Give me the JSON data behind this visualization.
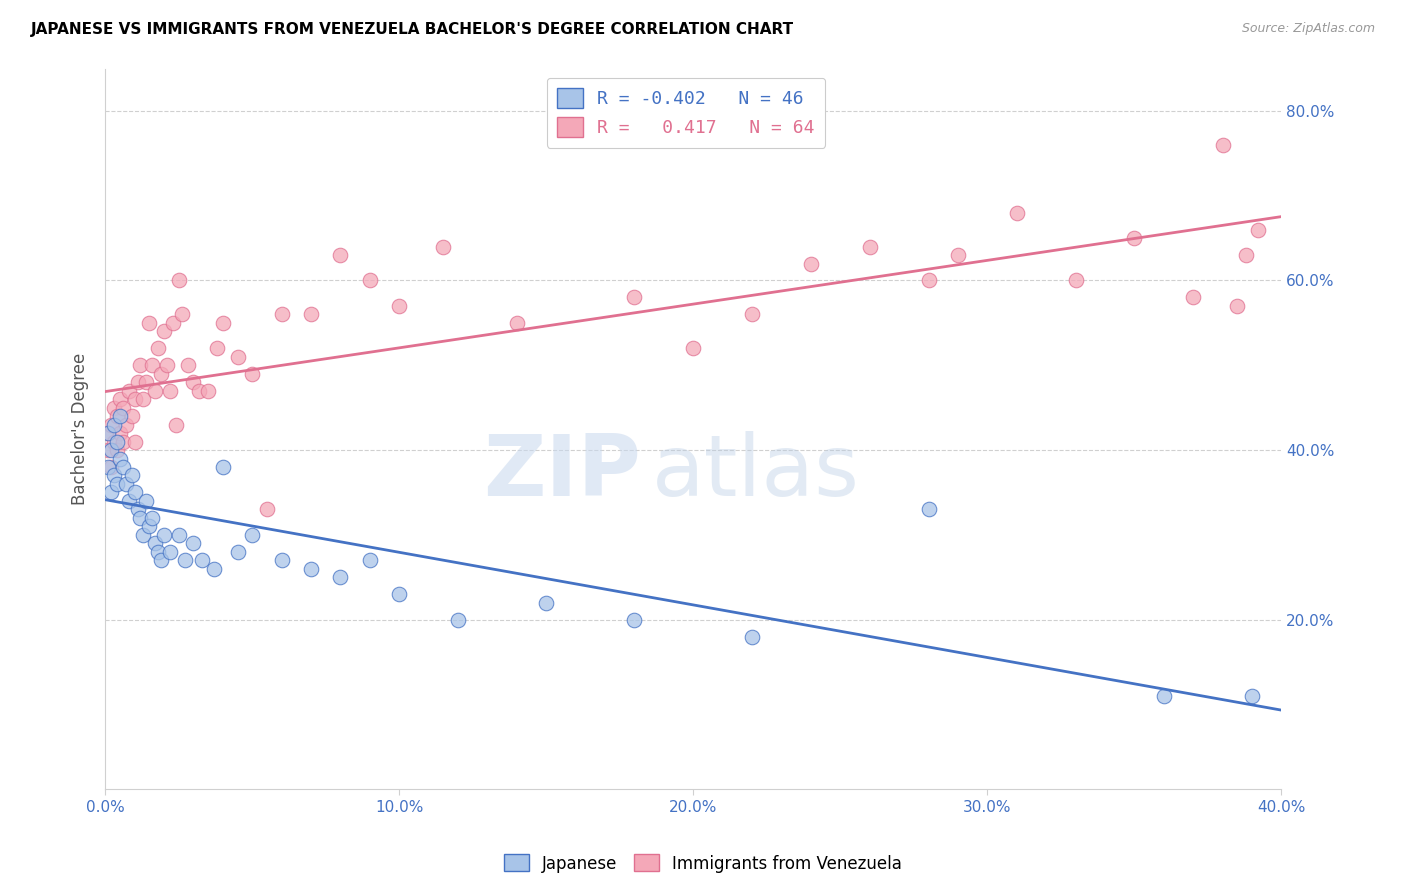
{
  "title": "JAPANESE VS IMMIGRANTS FROM VENEZUELA BACHELOR'S DEGREE CORRELATION CHART",
  "source": "Source: ZipAtlas.com",
  "ylabel": "Bachelor's Degree",
  "watermark_zip": "ZIP",
  "watermark_atlas": "atlas",
  "legend_label1": "Japanese",
  "legend_label2": "Immigrants from Venezuela",
  "r1": "-0.402",
  "n1": "46",
  "r2": "0.417",
  "n2": "64",
  "color_japanese": "#a8c4e8",
  "color_venezuela": "#f4a8b8",
  "line_color_japanese": "#4472c4",
  "line_color_venezuela": "#e07090",
  "tick_color": "#4472c4",
  "grid_color": "#d0d0d0",
  "xlim": [
    0.0,
    0.4
  ],
  "ylim": [
    0.0,
    0.85
  ],
  "xticks": [
    0.0,
    0.1,
    0.2,
    0.3,
    0.4
  ],
  "yticks": [
    0.2,
    0.4,
    0.6,
    0.8
  ],
  "japanese_x": [
    0.001,
    0.001,
    0.002,
    0.002,
    0.003,
    0.003,
    0.004,
    0.004,
    0.005,
    0.005,
    0.006,
    0.007,
    0.008,
    0.009,
    0.01,
    0.011,
    0.012,
    0.013,
    0.014,
    0.015,
    0.016,
    0.017,
    0.018,
    0.019,
    0.02,
    0.022,
    0.025,
    0.027,
    0.03,
    0.033,
    0.037,
    0.04,
    0.045,
    0.05,
    0.06,
    0.07,
    0.08,
    0.09,
    0.1,
    0.12,
    0.15,
    0.18,
    0.22,
    0.28,
    0.36,
    0.39
  ],
  "japanese_y": [
    0.42,
    0.38,
    0.4,
    0.35,
    0.43,
    0.37,
    0.41,
    0.36,
    0.44,
    0.39,
    0.38,
    0.36,
    0.34,
    0.37,
    0.35,
    0.33,
    0.32,
    0.3,
    0.34,
    0.31,
    0.32,
    0.29,
    0.28,
    0.27,
    0.3,
    0.28,
    0.3,
    0.27,
    0.29,
    0.27,
    0.26,
    0.38,
    0.28,
    0.3,
    0.27,
    0.26,
    0.25,
    0.27,
    0.23,
    0.2,
    0.22,
    0.2,
    0.18,
    0.33,
    0.11,
    0.11
  ],
  "venezuela_x": [
    0.001,
    0.001,
    0.002,
    0.002,
    0.003,
    0.003,
    0.004,
    0.004,
    0.005,
    0.005,
    0.006,
    0.006,
    0.007,
    0.008,
    0.009,
    0.01,
    0.01,
    0.011,
    0.012,
    0.013,
    0.014,
    0.015,
    0.016,
    0.017,
    0.018,
    0.019,
    0.02,
    0.021,
    0.022,
    0.023,
    0.024,
    0.025,
    0.026,
    0.028,
    0.03,
    0.032,
    0.035,
    0.038,
    0.04,
    0.045,
    0.05,
    0.055,
    0.06,
    0.07,
    0.08,
    0.09,
    0.1,
    0.115,
    0.14,
    0.18,
    0.2,
    0.22,
    0.24,
    0.26,
    0.28,
    0.29,
    0.31,
    0.33,
    0.35,
    0.37,
    0.38,
    0.385,
    0.388,
    0.392
  ],
  "venezuela_y": [
    0.4,
    0.42,
    0.43,
    0.38,
    0.45,
    0.41,
    0.44,
    0.4,
    0.46,
    0.42,
    0.45,
    0.41,
    0.43,
    0.47,
    0.44,
    0.46,
    0.41,
    0.48,
    0.5,
    0.46,
    0.48,
    0.55,
    0.5,
    0.47,
    0.52,
    0.49,
    0.54,
    0.5,
    0.47,
    0.55,
    0.43,
    0.6,
    0.56,
    0.5,
    0.48,
    0.47,
    0.47,
    0.52,
    0.55,
    0.51,
    0.49,
    0.33,
    0.56,
    0.56,
    0.63,
    0.6,
    0.57,
    0.64,
    0.55,
    0.58,
    0.52,
    0.56,
    0.62,
    0.64,
    0.6,
    0.63,
    0.68,
    0.6,
    0.65,
    0.58,
    0.76,
    0.57,
    0.63,
    0.66
  ]
}
